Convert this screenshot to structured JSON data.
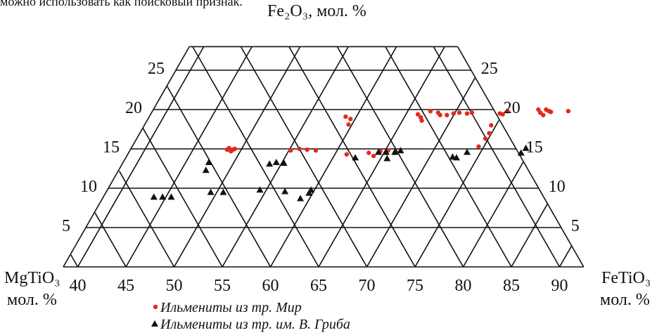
{
  "top_cut_text": "можно использовать как поисковый признак.",
  "chart_data": {
    "type": "scatter",
    "title": "",
    "apex_label": "Fe₂O₃, мол. %",
    "left_label_line1": "MgTiO₃",
    "left_label_line2": "мол. %",
    "right_label_line1": "FeTiO₃",
    "right_label_line2": "мол. %",
    "x_axis_ticks": [
      "40",
      "45",
      "50",
      "55",
      "60",
      "65",
      "70",
      "75",
      "80",
      "85",
      "90"
    ],
    "y_axis_ticks_left": [
      "5",
      "10",
      "15",
      "20",
      "25"
    ],
    "y_axis_ticks_right": [
      "5",
      "10",
      "15",
      "20",
      "25"
    ],
    "x_range": [
      38.5,
      92.5
    ],
    "y_range": [
      0,
      28
    ],
    "grid": true,
    "legend_position": "bottom-center",
    "series": [
      {
        "name": "Ильмениты из тр. Мир",
        "marker": "circle",
        "color": "#e02b20",
        "points": [
          [
            55.5,
            14.9
          ],
          [
            55.7,
            15.1
          ],
          [
            55.9,
            14.7
          ],
          [
            56.1,
            14.9
          ],
          [
            56.3,
            15.0
          ],
          [
            62.1,
            14.8
          ],
          [
            63.0,
            15.0
          ],
          [
            63.8,
            14.9
          ],
          [
            64.7,
            14.8
          ],
          [
            67.8,
            19.1
          ],
          [
            68.3,
            18.8
          ],
          [
            68.1,
            18.1
          ],
          [
            67.9,
            14.3
          ],
          [
            70.2,
            14.5
          ],
          [
            70.7,
            14.1
          ],
          [
            71.4,
            14.7
          ],
          [
            72.2,
            14.8
          ],
          [
            72.9,
            14.5
          ],
          [
            75.3,
            19.4
          ],
          [
            75.6,
            19.0
          ],
          [
            75.7,
            18.6
          ],
          [
            76.6,
            19.8
          ],
          [
            77.4,
            19.6
          ],
          [
            77.6,
            19.3
          ],
          [
            78.3,
            19.3
          ],
          [
            79.0,
            19.5
          ],
          [
            79.6,
            19.6
          ],
          [
            80.4,
            19.5
          ],
          [
            80.9,
            19.6
          ],
          [
            82.7,
            17.0
          ],
          [
            82.3,
            16.3
          ],
          [
            81.6,
            15.3
          ],
          [
            82.9,
            18.0
          ],
          [
            83.8,
            19.5
          ],
          [
            84.1,
            19.4
          ],
          [
            84.6,
            19.8
          ],
          [
            87.8,
            20.0
          ],
          [
            88.0,
            19.6
          ],
          [
            88.3,
            19.3
          ],
          [
            88.6,
            20.0
          ],
          [
            88.9,
            19.8
          ],
          [
            89.1,
            19.7
          ],
          [
            90.9,
            19.8
          ]
        ]
      },
      {
        "name": "Ильмениты из тр. им. В. Гриба",
        "marker": "triangle",
        "color": "#111111",
        "points": [
          [
            47.9,
            8.9
          ],
          [
            48.8,
            8.9
          ],
          [
            49.7,
            8.9
          ],
          [
            53.3,
            12.3
          ],
          [
            53.6,
            13.3
          ],
          [
            53.8,
            9.5
          ],
          [
            55.1,
            9.5
          ],
          [
            58.9,
            9.8
          ],
          [
            59.9,
            13.1
          ],
          [
            60.6,
            13.3
          ],
          [
            61.4,
            13.2
          ],
          [
            61.5,
            9.6
          ],
          [
            63.1,
            8.7
          ],
          [
            64.0,
            9.4
          ],
          [
            64.2,
            9.8
          ],
          [
            68.8,
            13.9
          ],
          [
            71.2,
            14.6
          ],
          [
            72.0,
            14.6
          ],
          [
            72.1,
            13.8
          ],
          [
            72.9,
            14.6
          ],
          [
            73.5,
            14.8
          ],
          [
            78.9,
            14.0
          ],
          [
            79.3,
            13.9
          ],
          [
            80.4,
            14.6
          ],
          [
            86.0,
            14.5
          ],
          [
            86.5,
            15.1
          ]
        ]
      }
    ]
  }
}
